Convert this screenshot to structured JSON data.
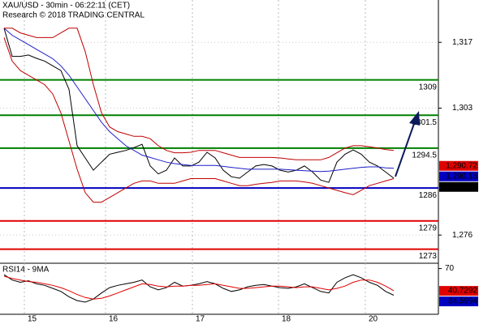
{
  "chart_data": {
    "type": "line",
    "title": "XAU/USD - 30min - 06:22:11 (CET)",
    "subtitle": "Research © 2018 TRADING CENTRAL",
    "xlim": [
      0,
      48
    ],
    "xticks": [
      {
        "value": 2.5,
        "label": "15"
      },
      {
        "value": 12.5,
        "label": "16"
      },
      {
        "value": 23.2,
        "label": "17"
      },
      {
        "value": 33.8,
        "label": "18"
      },
      {
        "value": 44.5,
        "label": "20"
      }
    ],
    "ylim": [
      1270,
      1326
    ],
    "yticks": [
      {
        "value": 1317,
        "label": "1,317"
      },
      {
        "value": 1303,
        "label": "1,303"
      },
      {
        "value": 1276,
        "label": "1,276"
      }
    ],
    "grid": true,
    "levels": [
      {
        "value": 1309,
        "color": "#008000"
      },
      {
        "value": 1301.5,
        "color": "#008000"
      },
      {
        "value": 1294.5,
        "color": "#008000"
      },
      {
        "value": 1286,
        "color": "#0000c0"
      },
      {
        "value": 1279,
        "color": "#e00000"
      },
      {
        "value": 1273,
        "color": "#e00000"
      }
    ],
    "price_tags": [
      {
        "value": 1290.72,
        "label": "1,290.72",
        "color": "#e00000"
      },
      {
        "value": 1290.16,
        "label": "1,290.16",
        "color": "#0000c0"
      },
      {
        "value": 1288.14,
        "label": "1,288.14",
        "color": "#000000"
      }
    ],
    "series": [
      {
        "color": "#000000",
        "values": [
          1320,
          1314,
          1314,
          1314.3,
          1313.6,
          1313,
          1312,
          1311,
          1307,
          1295,
          1292.4,
          1289.8,
          1291.5,
          1293.2,
          1293.6,
          1294,
          1294.6,
          1295.3,
          1290.7,
          1289,
          1289.8,
          1292.4,
          1290.7,
          1290.7,
          1291.5,
          1293.6,
          1292.4,
          1289.8,
          1288.4,
          1288.1,
          1289.4,
          1290.7,
          1291,
          1290.7,
          1289.8,
          1289.4,
          1289.8,
          1290.7,
          1289.4,
          1287.7,
          1287.2,
          1291.5,
          1293.2,
          1294.1,
          1293.2,
          1291.5,
          1290.7,
          1289.4,
          1288.1
        ]
      },
      {
        "color": "#1f1fc8",
        "values": [
          1320,
          1318.5,
          1317.5,
          1316.5,
          1315.5,
          1314.5,
          1313.5,
          1312,
          1310,
          1307.5,
          1305,
          1302.5,
          1300,
          1298,
          1296.5,
          1295,
          1294,
          1293,
          1292.5,
          1292,
          1291.5,
          1291.2,
          1291,
          1290.8,
          1290.8,
          1290.8,
          1290.8,
          1290.6,
          1290.4,
          1290.2,
          1290,
          1290,
          1290,
          1290,
          1290,
          1289.9,
          1289.8,
          1289.7,
          1289.6,
          1289.5,
          1289.6,
          1289.8,
          1290,
          1290.2,
          1290.4,
          1290.5,
          1290.5,
          1290.3,
          1290.2
        ]
      },
      {
        "color": "#c00000",
        "values": [
          1320,
          1320,
          1319,
          1318.5,
          1318,
          1318,
          1318,
          1319,
          1320,
          1320,
          1315,
          1308,
          1302,
          1299,
          1298,
          1297.5,
          1297,
          1297,
          1296.5,
          1295,
          1294,
          1293.5,
          1293.5,
          1293.6,
          1294,
          1294,
          1294,
          1293.5,
          1293,
          1292.5,
          1292.5,
          1292.5,
          1292.5,
          1292.5,
          1292.4,
          1292.2,
          1292,
          1292,
          1292,
          1292,
          1292.5,
          1293.5,
          1294.5,
          1295,
          1295,
          1294.8,
          1294.5,
          1294.2,
          1294
        ]
      },
      {
        "color": "#c00000",
        "values": [
          1318,
          1313,
          1311,
          1310,
          1309,
          1308,
          1306,
          1302,
          1296,
          1290,
          1285,
          1283,
          1283,
          1284,
          1285,
          1286,
          1287,
          1287.5,
          1287.5,
          1287,
          1287,
          1287,
          1287.5,
          1288,
          1288,
          1288,
          1288,
          1287.5,
          1287,
          1286.5,
          1286.5,
          1286.8,
          1287,
          1287.2,
          1287.5,
          1287.5,
          1287.5,
          1287.3,
          1287,
          1286.5,
          1286,
          1285.5,
          1285,
          1284.6,
          1285.5,
          1286.5,
          1287,
          1287.5,
          1288
        ]
      }
    ],
    "rsi": {
      "label": "RSI14 - 9MA",
      "ylim": [
        10,
        77
      ],
      "yticks": [
        70
      ],
      "tags": [
        {
          "value": 40.7292,
          "color": "#e00000"
        },
        {
          "value": 34.5994,
          "color": "#0000c0"
        }
      ],
      "series": [
        {
          "color": "#000000",
          "values": [
            62,
            55,
            52,
            54,
            50,
            48,
            44,
            40,
            33,
            28,
            26,
            30,
            38,
            45,
            48,
            50,
            52,
            55,
            46,
            42,
            45,
            52,
            47,
            48,
            50,
            53,
            50,
            44,
            40,
            42,
            46,
            48,
            49,
            47,
            45,
            44,
            46,
            50,
            45,
            40,
            38,
            52,
            58,
            62,
            58,
            52,
            48,
            40,
            35
          ]
        },
        {
          "color": "#e00000",
          "values": [
            60,
            57,
            55,
            53,
            52,
            50,
            48,
            45,
            41,
            36,
            32,
            30,
            31,
            34,
            38,
            42,
            46,
            50,
            49,
            47,
            46,
            47,
            47,
            48,
            48,
            49,
            50,
            48,
            46,
            44,
            44,
            45,
            46,
            47,
            47,
            46,
            45,
            46,
            46,
            44,
            42,
            44,
            47,
            52,
            55,
            55,
            52,
            47,
            41
          ]
        }
      ]
    }
  }
}
